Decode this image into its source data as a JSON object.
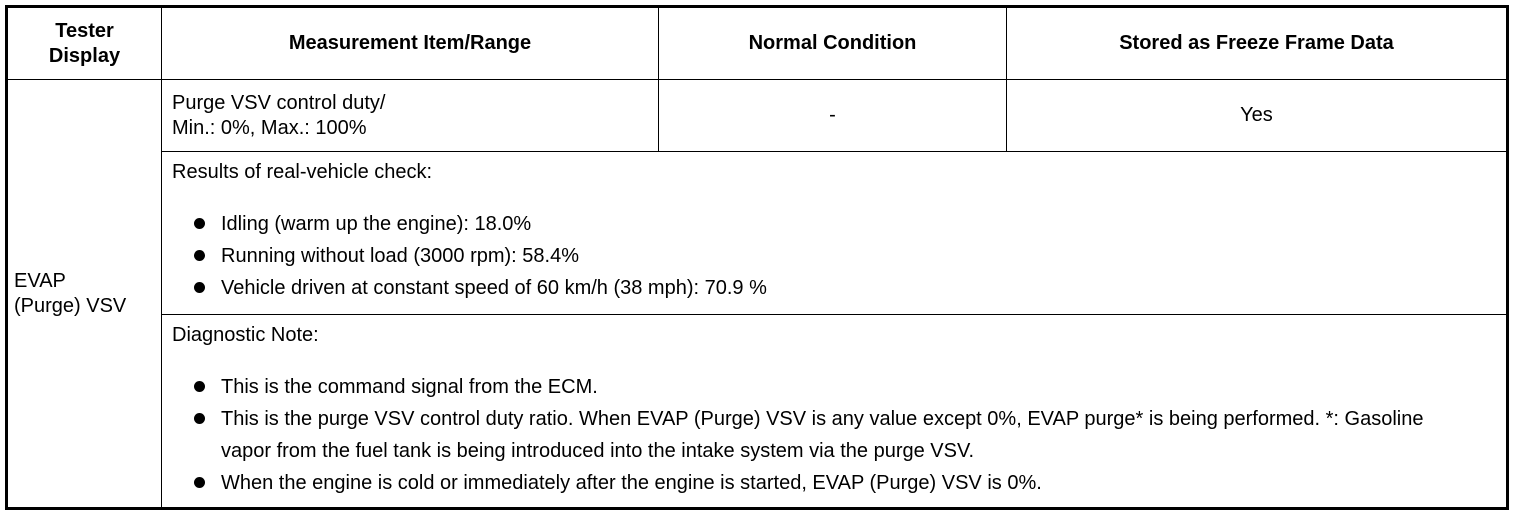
{
  "table": {
    "header": [
      [
        "Tester",
        "Display"
      ],
      "Measurement Item/Range",
      "Normal Condition",
      "Stored as Freeze Frame Data"
    ],
    "tester_display": [
      "EVAP",
      "(Purge) VSV"
    ],
    "measurement": [
      "Purge VSV control duty/",
      "Min.: 0%, Max.: 100%"
    ],
    "normal_condition": "-",
    "freeze_frame": "Yes",
    "results": {
      "title": "Results of real-vehicle check:",
      "items": [
        "Idling (warm up the engine): 18.0%",
        "Running without load (3000 rpm): 58.4%",
        "Vehicle driven at constant speed of 60 km/h (38 mph): 70.9 %"
      ]
    },
    "note": {
      "title": "Diagnostic Note:",
      "items": [
        "This is the command signal from the ECM.",
        "This is the purge VSV control duty ratio. When EVAP (Purge) VSV is any value except 0%, EVAP purge* is being performed. *: Gasoline vapor from the fuel tank is being introduced into the intake system via the purge VSV.",
        "When the engine is cold or immediately after the engine is started, EVAP (Purge) VSV is 0%."
      ]
    }
  }
}
